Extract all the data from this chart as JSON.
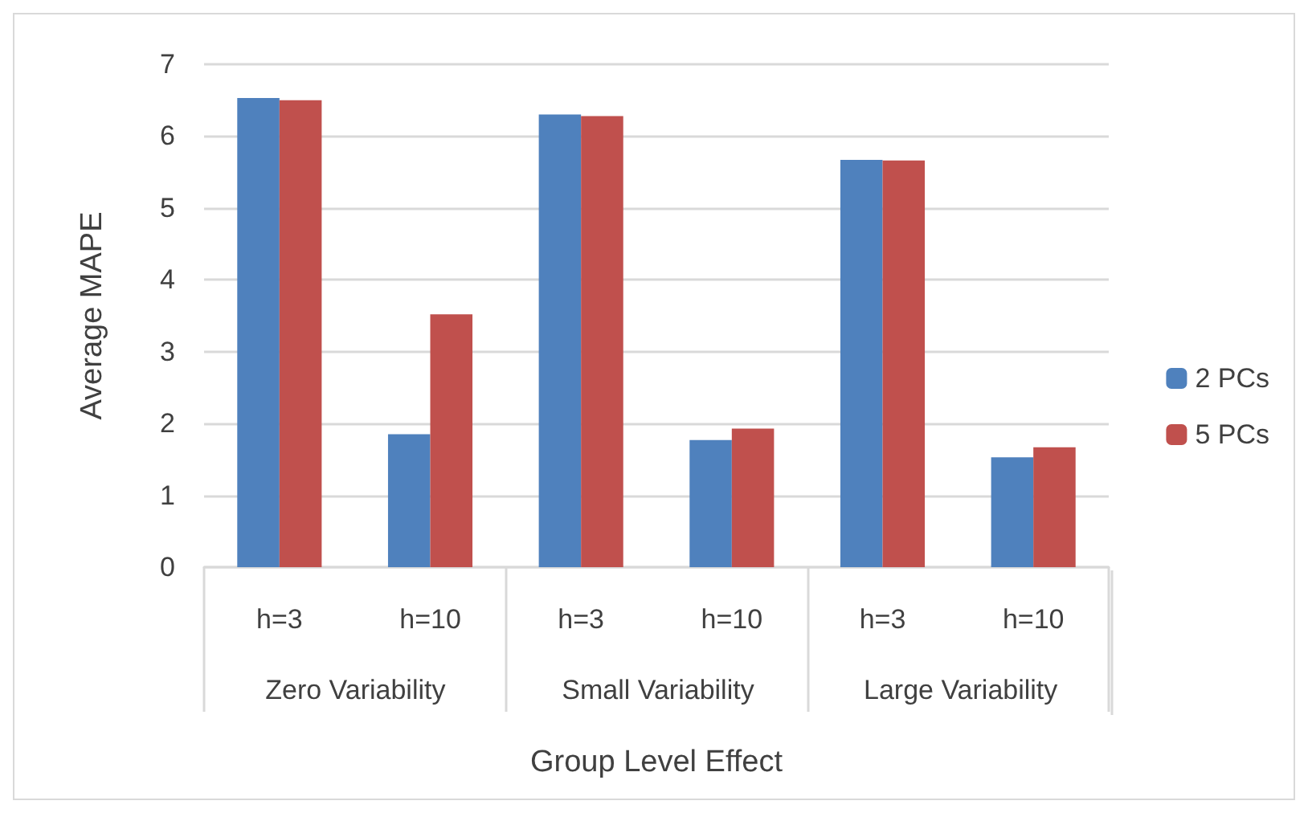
{
  "chart_data": {
    "type": "bar",
    "xlabel": "Group Level Effect",
    "ylabel": "Average MAPE",
    "categories": [
      "h=3",
      "h=10",
      "h=3",
      "h=10",
      "h=3",
      "h=10"
    ],
    "series": [
      {
        "name": "2 PCs",
        "color": "#4f81bd",
        "values": [
          6.53,
          1.85,
          6.3,
          1.77,
          5.67,
          1.53
        ]
      },
      {
        "name": "5 PCs",
        "color": "#c0504d",
        "values": [
          6.5,
          3.52,
          6.28,
          1.93,
          5.66,
          1.67
        ]
      }
    ],
    "annotations": [
      "Zero Variability",
      "Small Variability",
      "Large Variability"
    ],
    "ylim": [
      0,
      7
    ],
    "yticks": [
      0,
      1,
      2,
      3,
      4,
      5,
      6,
      7
    ],
    "grid": "y",
    "legend": "right"
  }
}
